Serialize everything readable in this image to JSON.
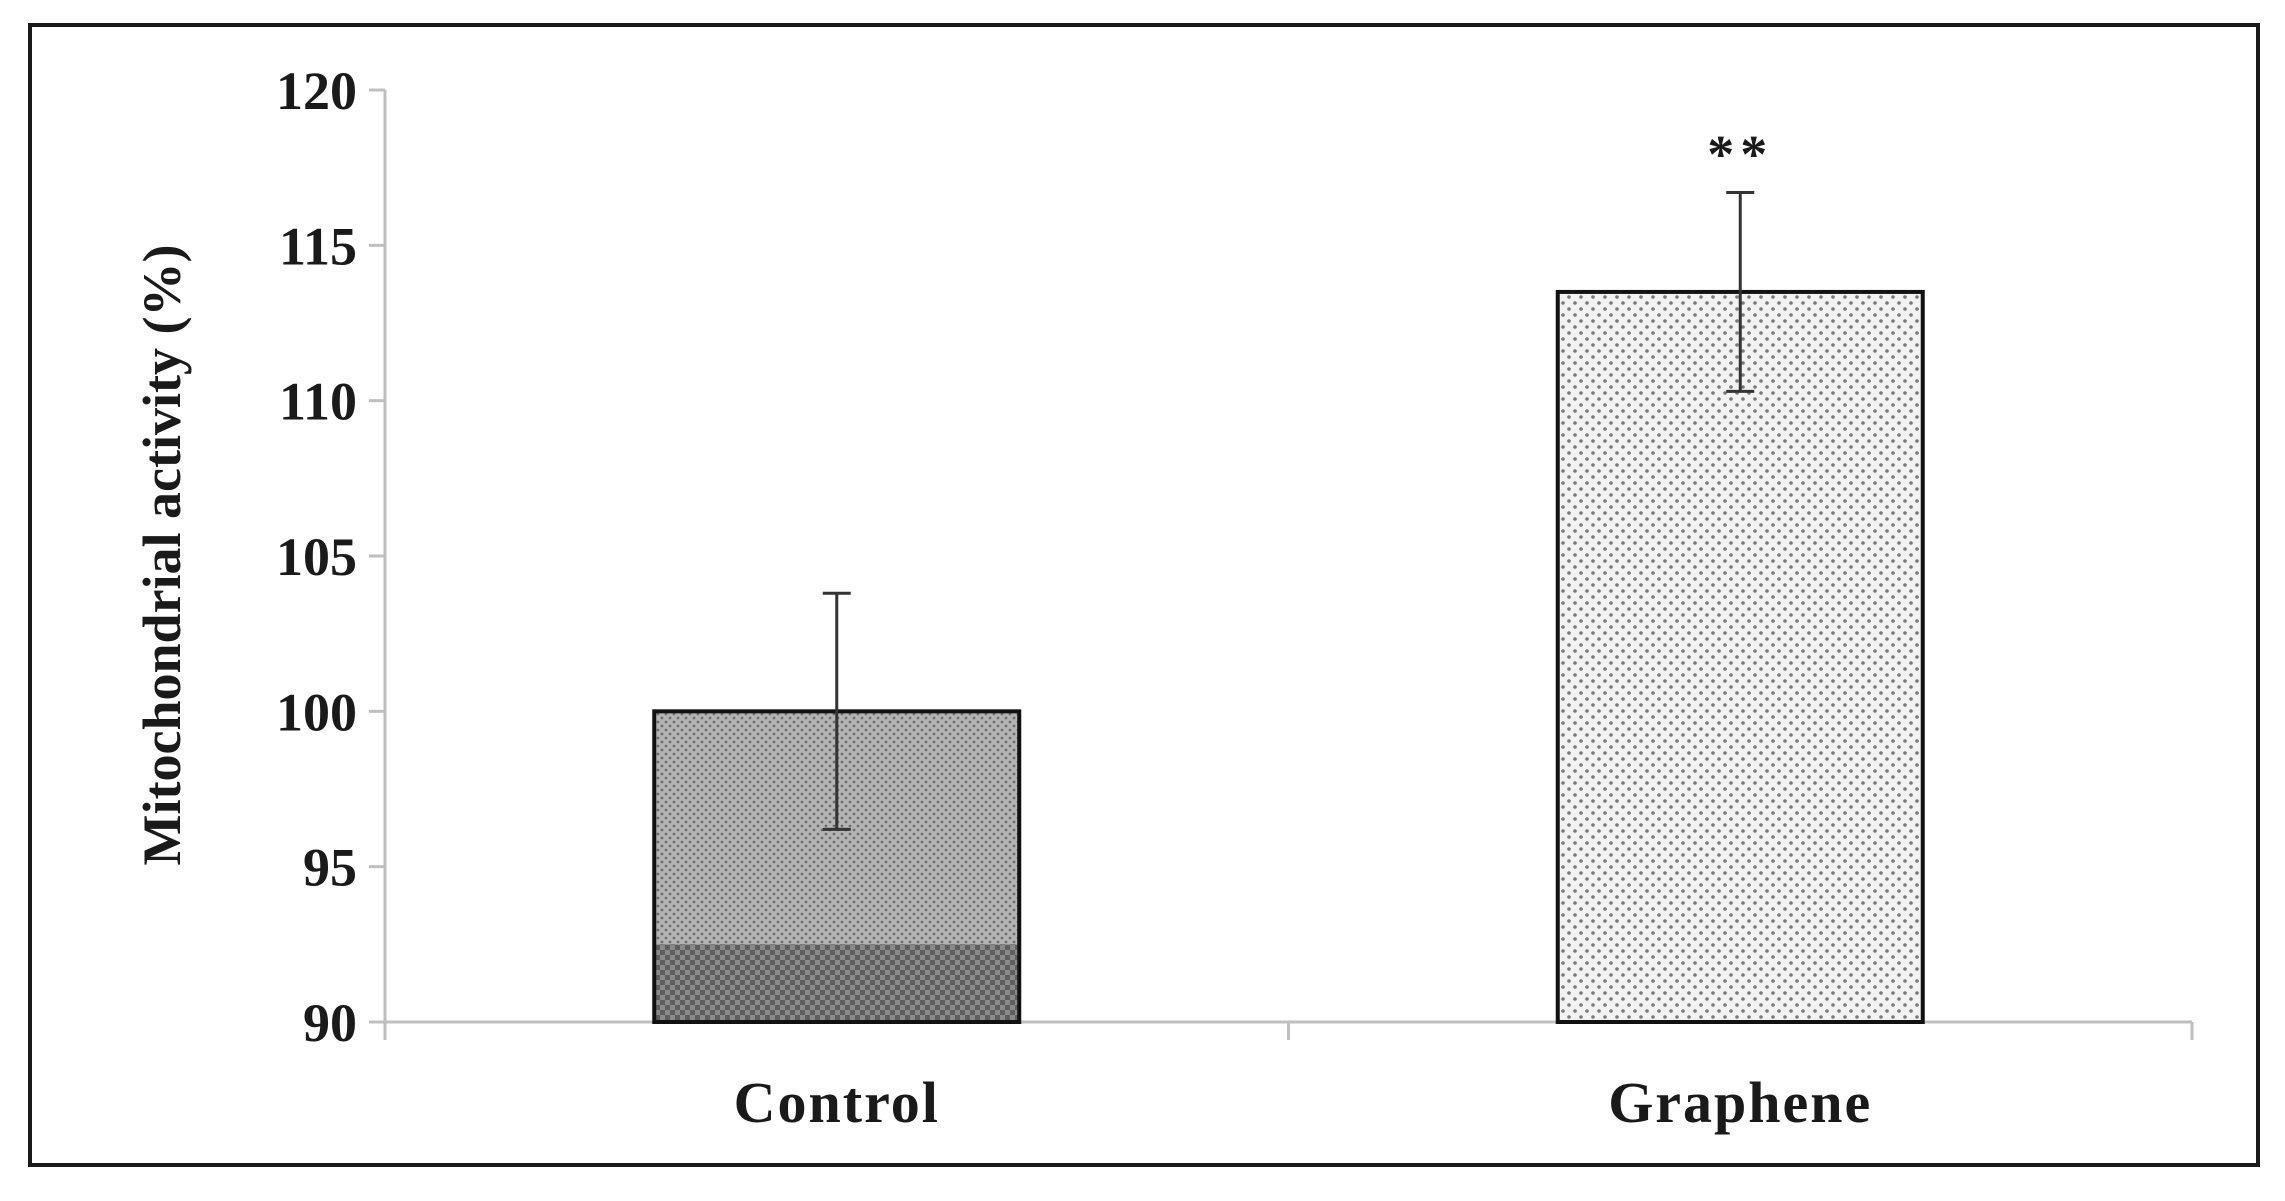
{
  "chart_data": {
    "type": "bar",
    "categories": [
      "Control",
      "Graphene"
    ],
    "values": [
      100,
      113.5
    ],
    "errors": [
      3.8,
      3.2
    ],
    "annotations": [
      "",
      "**"
    ],
    "xlabel": "",
    "ylabel": "Mitochondrial activity (%)",
    "ylim": [
      90,
      120
    ],
    "yticks": [
      90,
      95,
      100,
      105,
      110,
      115,
      120
    ],
    "ytick_labels": [
      "90",
      "95",
      "100",
      "105",
      "110",
      "115",
      "120"
    ],
    "grid": false,
    "legend": "none",
    "colors": {
      "frame": "#1a1a1a",
      "axis": "#bfbfbf",
      "control_fill": "#a8a8a8",
      "control_base_fill": "#7a7a7a",
      "graphene_fill": "#ededed",
      "bar_outline": "#111111",
      "error_bar": "#333333"
    }
  }
}
